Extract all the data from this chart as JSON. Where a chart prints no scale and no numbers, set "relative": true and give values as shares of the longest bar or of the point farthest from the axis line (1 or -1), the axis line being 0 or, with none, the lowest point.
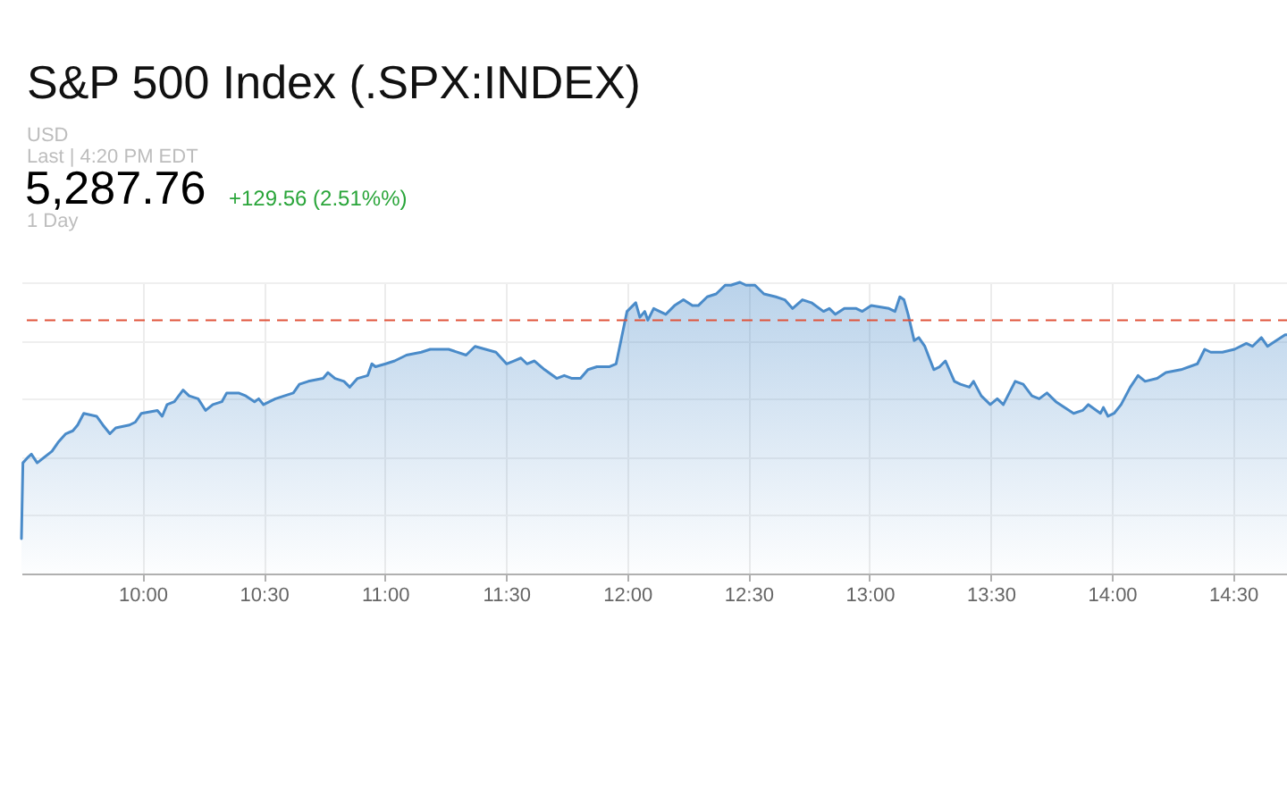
{
  "chart_data": {
    "type": "area",
    "title": "S&P 500 Index (.SPX:INDEX)",
    "annotations": [
      "USD",
      "Last | 4:20 PM EDT",
      "5,287.76",
      "+129.56 (2.51%%)",
      "1 Day"
    ],
    "relative": true,
    "x": [
      9.5,
      9.506,
      9.528,
      9.541,
      9.565,
      9.626,
      9.651,
      9.683,
      9.712,
      9.732,
      9.757,
      9.81,
      9.836,
      9.865,
      9.889,
      9.946,
      9.97,
      9.995,
      10.061,
      10.081,
      10.101,
      10.131,
      10.167,
      10.192,
      10.229,
      10.26,
      10.29,
      10.327,
      10.347,
      10.396,
      10.426,
      10.462,
      10.479,
      10.499,
      10.548,
      10.622,
      10.647,
      10.684,
      10.745,
      10.765,
      10.794,
      10.831,
      10.855,
      10.887,
      10.929,
      10.946,
      10.961,
      11.003,
      11.04,
      11.089,
      11.15,
      11.187,
      11.263,
      11.335,
      11.372,
      11.458,
      11.502,
      11.532,
      11.561,
      11.586,
      11.617,
      11.659,
      11.709,
      11.74,
      11.772,
      11.807,
      11.838,
      11.875,
      11.925,
      11.954,
      11.974,
      11.999,
      12.035,
      12.052,
      12.072,
      12.085,
      12.109,
      12.159,
      12.195,
      12.232,
      12.269,
      12.293,
      12.33,
      12.367,
      12.404,
      12.428,
      12.465,
      12.49,
      12.527,
      12.564,
      12.613,
      12.65,
      12.682,
      12.723,
      12.76,
      12.81,
      12.834,
      12.859,
      12.896,
      12.945,
      12.97,
      13.007,
      13.08,
      13.105,
      13.125,
      13.142,
      13.159,
      13.184,
      13.203,
      13.228,
      13.265,
      13.289,
      13.313,
      13.35,
      13.375,
      13.412,
      13.429,
      13.461,
      13.498,
      13.527,
      13.552,
      13.601,
      13.634,
      13.67,
      13.7,
      13.732,
      13.769,
      13.842,
      13.879,
      13.903,
      13.953,
      13.965,
      13.984,
      14.009,
      14.038,
      14.076,
      14.108,
      14.137,
      14.187,
      14.223,
      14.285,
      14.353,
      14.383,
      14.408,
      14.456,
      14.506,
      14.555,
      14.58,
      14.617,
      14.642,
      14.678,
      14.715,
      14.73
    ],
    "series": [
      {
        "color": "#4a8bc9",
        "values": [
          0.12,
          0.38,
          0.4,
          0.41,
          0.38,
          0.42,
          0.45,
          0.48,
          0.49,
          0.51,
          0.55,
          0.54,
          0.51,
          0.48,
          0.5,
          0.51,
          0.52,
          0.55,
          0.56,
          0.54,
          0.58,
          0.59,
          0.63,
          0.61,
          0.6,
          0.56,
          0.58,
          0.59,
          0.62,
          0.62,
          0.61,
          0.59,
          0.6,
          0.58,
          0.6,
          0.62,
          0.65,
          0.66,
          0.67,
          0.69,
          0.67,
          0.66,
          0.64,
          0.67,
          0.68,
          0.72,
          0.71,
          0.72,
          0.73,
          0.75,
          0.76,
          0.77,
          0.77,
          0.75,
          0.78,
          0.76,
          0.72,
          0.73,
          0.74,
          0.72,
          0.73,
          0.7,
          0.67,
          0.68,
          0.67,
          0.67,
          0.7,
          0.71,
          0.71,
          0.72,
          0.8,
          0.9,
          0.93,
          0.88,
          0.9,
          0.87,
          0.91,
          0.89,
          0.92,
          0.94,
          0.92,
          0.92,
          0.95,
          0.96,
          0.99,
          0.99,
          1.0,
          0.99,
          0.99,
          0.96,
          0.95,
          0.94,
          0.91,
          0.94,
          0.93,
          0.9,
          0.91,
          0.89,
          0.91,
          0.91,
          0.9,
          0.92,
          0.91,
          0.9,
          0.95,
          0.94,
          0.89,
          0.8,
          0.81,
          0.78,
          0.7,
          0.71,
          0.73,
          0.66,
          0.65,
          0.64,
          0.66,
          0.61,
          0.58,
          0.6,
          0.58,
          0.66,
          0.65,
          0.61,
          0.6,
          0.62,
          0.59,
          0.55,
          0.56,
          0.58,
          0.55,
          0.57,
          0.54,
          0.55,
          0.58,
          0.64,
          0.68,
          0.66,
          0.67,
          0.69,
          0.7,
          0.72,
          0.77,
          0.76,
          0.76,
          0.77,
          0.79,
          0.78,
          0.81,
          0.78,
          0.8,
          0.82,
          0.82
        ]
      }
    ],
    "xlim": [
      9.5,
      14.73
    ],
    "xticks": [
      {
        "value": 10,
        "label": "10:00"
      },
      {
        "value": 10.5,
        "label": "10:30"
      },
      {
        "value": 11,
        "label": "11:00"
      },
      {
        "value": 11.5,
        "label": "11:30"
      },
      {
        "value": 12,
        "label": "12:00"
      },
      {
        "value": 12.5,
        "label": "12:30"
      },
      {
        "value": 13,
        "label": "13:00"
      },
      {
        "value": 13.5,
        "label": "13:30"
      },
      {
        "value": 14,
        "label": "14:00"
      },
      {
        "value": 14.5,
        "label": "14:30"
      }
    ],
    "grid": true,
    "ref_lines": [
      {
        "axis": "y",
        "value": 0.87,
        "color": "#e0533a",
        "line_style": "dashed"
      }
    ]
  }
}
